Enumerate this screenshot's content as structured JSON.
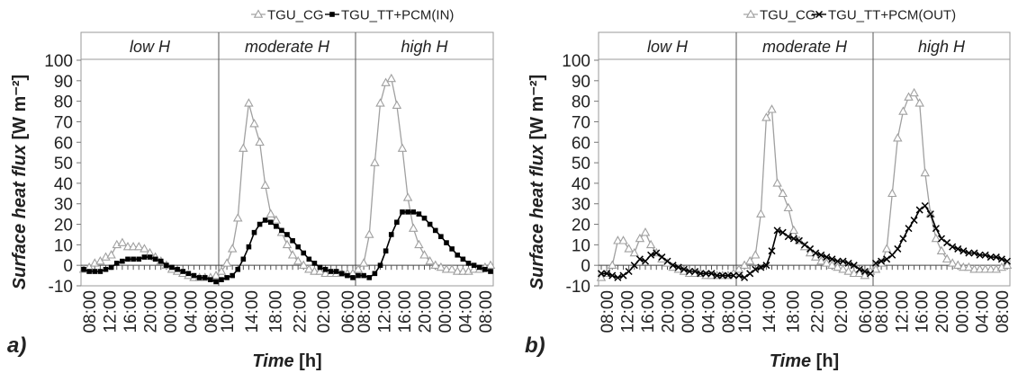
{
  "chart_data": [
    {
      "type": "line",
      "panel_label": "a)",
      "ylabel": {
        "main": "Surface heat flux",
        "unit": "[W m⁻²]"
      },
      "xlabel": {
        "main": "Time",
        "unit": "[h]"
      },
      "ylim": [
        -10,
        100
      ],
      "yticks": [
        "-10",
        "0",
        "10",
        "20",
        "30",
        "40",
        "50",
        "60",
        "70",
        "80",
        "90",
        "100"
      ],
      "legend": [
        "TGU_CG",
        "TGU_TT+PCM(IN)"
      ],
      "legend_position": "top-right",
      "grid": false,
      "sections": [
        {
          "title": "low H",
          "xticks": [
            "08:00",
            "12:00",
            "16:00",
            "20:00",
            "00:00",
            "04:00",
            "08:00"
          ]
        },
        {
          "title": "moderate H",
          "xticks": [
            "10:00",
            "14:00",
            "18:00",
            "22:00",
            "02:00",
            "06:00"
          ]
        },
        {
          "title": "high H",
          "xticks": [
            "08:00",
            "12:00",
            "16:00",
            "20:00",
            "00:00",
            "04:00",
            "08:00"
          ]
        }
      ],
      "series": [
        {
          "name": "TGU_CG",
          "marker": "triangle",
          "color": "#a0a0a0",
          "segments": [
            [
              -2,
              -1,
              1,
              2,
              4,
              5,
              10,
              11,
              9,
              9,
              9,
              8,
              6,
              4,
              2,
              0,
              -2,
              -3,
              -4,
              -5,
              -6,
              -6,
              -6,
              -6,
              -5
            ],
            [
              -3,
              1,
              8,
              23,
              57,
              79,
              69,
              60,
              39,
              25,
              22,
              16,
              10,
              5,
              2,
              0,
              -2,
              -3,
              -3,
              -4,
              -4,
              -4,
              -4,
              -4,
              -4
            ],
            [
              -2,
              1,
              15,
              50,
              79,
              89,
              91,
              78,
              57,
              33,
              18,
              10,
              5,
              2,
              0,
              -1,
              -2,
              -2,
              -3,
              -3,
              -3,
              -2,
              -2,
              -1,
              0
            ]
          ]
        },
        {
          "name": "TGU_TT+PCM(IN)",
          "marker": "square",
          "color": "#000000",
          "segments": [
            [
              -2,
              -3,
              -3,
              -3,
              -2,
              -1,
              1,
              2,
              3,
              3,
              3,
              4,
              4,
              3,
              2,
              0,
              -1,
              -2,
              -3,
              -4,
              -5,
              -6,
              -6,
              -7,
              -8
            ],
            [
              -7,
              -6,
              -5,
              -2,
              3,
              9,
              16,
              20,
              22,
              21,
              19,
              17,
              15,
              12,
              9,
              6,
              3,
              1,
              -1,
              -2,
              -3,
              -3,
              -4,
              -5,
              -6
            ],
            [
              -5,
              -5,
              -6,
              -4,
              0,
              7,
              15,
              21,
              26,
              26,
              26,
              25,
              23,
              20,
              17,
              14,
              11,
              8,
              5,
              3,
              1,
              0,
              -1,
              -2,
              -3
            ]
          ]
        }
      ]
    },
    {
      "type": "line",
      "panel_label": "b)",
      "ylabel": {
        "main": "Surface heat flux",
        "unit": "[W m⁻²]"
      },
      "xlabel": {
        "main": "Time",
        "unit": "[h]"
      },
      "ylim": [
        -10,
        100
      ],
      "yticks": [
        "-10",
        "0",
        "10",
        "20",
        "30",
        "40",
        "50",
        "60",
        "70",
        "80",
        "90",
        "100"
      ],
      "legend": [
        "TGU_CG",
        "TGU_TT+PCM(OUT)"
      ],
      "legend_position": "top-right",
      "grid": false,
      "sections": [
        {
          "title": "low H",
          "xticks": [
            "08:00",
            "12:00",
            "16:00",
            "20:00",
            "00:00",
            "04:00",
            "08:00"
          ]
        },
        {
          "title": "moderate H",
          "xticks": [
            "10:00",
            "14:00",
            "18:00",
            "22:00",
            "02:00",
            "06:00"
          ]
        },
        {
          "title": "high H",
          "xticks": [
            "08:00",
            "12:00",
            "16:00",
            "20:00",
            "00:00",
            "04:00",
            "08:00"
          ]
        }
      ],
      "series": [
        {
          "name": "TGU_CG",
          "marker": "triangle",
          "color": "#a0a0a0",
          "segments": [
            [
              -6,
              -4,
              0,
              12,
              12,
              8,
              6,
              13,
              16,
              10,
              6,
              3,
              1,
              -1,
              -2,
              -3,
              -4,
              -4,
              -4,
              -5,
              -5,
              -5,
              -5,
              -5,
              -4
            ],
            [
              -2,
              0,
              2,
              5,
              25,
              72,
              76,
              40,
              35,
              28,
              17,
              12,
              9,
              6,
              4,
              2,
              1,
              0,
              -1,
              -2,
              -3,
              -4,
              -4,
              -5,
              -3
            ],
            [
              -2,
              1,
              8,
              35,
              62,
              75,
              82,
              84,
              79,
              45,
              25,
              13,
              7,
              3,
              1,
              0,
              -1,
              -1,
              -2,
              -2,
              -2,
              -2,
              -2,
              -1,
              0
            ]
          ]
        },
        {
          "name": "TGU_TT+PCM(OUT)",
          "marker": "x",
          "color": "#000000",
          "segments": [
            [
              -4,
              -4,
              -5,
              -6,
              -5,
              -3,
              0,
              3,
              2,
              5,
              6,
              4,
              2,
              0,
              -1,
              -2,
              -3,
              -3,
              -4,
              -4,
              -4,
              -5,
              -5,
              -5,
              -5
            ],
            [
              -5,
              -6,
              -4,
              -2,
              -1,
              0,
              7,
              17,
              16,
              14,
              13,
              12,
              10,
              8,
              6,
              5,
              4,
              3,
              2,
              2,
              1,
              0,
              -2,
              -3,
              -4
            ],
            [
              1,
              2,
              3,
              5,
              8,
              13,
              18,
              22,
              27,
              29,
              25,
              18,
              13,
              11,
              9,
              8,
              7,
              6,
              6,
              5,
              5,
              4,
              4,
              3,
              2
            ]
          ]
        }
      ]
    }
  ]
}
